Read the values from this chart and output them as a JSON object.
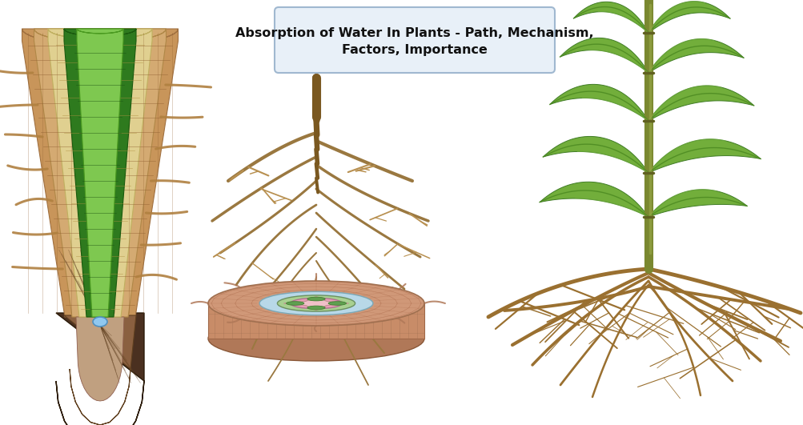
{
  "title_line1": "Absorption of Water In Plants - Path, Mechanism,",
  "title_line2": "Factors, Importance",
  "title_box_color": "#e8f0f8",
  "title_box_edge": "#a0b8d0",
  "title_fontsize": 11.5,
  "bg_color": "#ffffff",
  "fig_width": 10.04,
  "fig_height": 5.31,
  "colors": {
    "cortex_brown": "#c8955a",
    "cortex_light": "#d4aa72",
    "endodermis_yellow": "#e8d88a",
    "vascular_dark_green": "#2e7a1e",
    "vascular_light_green": "#7ec850",
    "root_cap_dark": "#6e5030",
    "root_cap_mid": "#b08050",
    "root_cap_light": "#c8a878",
    "tip_blue": "#90c0e8",
    "hair_brown": "#b08040",
    "taproot_brown": "#9a7840",
    "taproot_light": "#c09a60",
    "cross_outer": "#d4a080",
    "cross_mid": "#c09070",
    "vascular_blue": "#a0c8e0",
    "vascular_green_cross": "#60a050",
    "vascular_pink": "#e8a0b0",
    "vascular_pink_center": "#f0c0c8",
    "plant_stem": "#7a8830",
    "plant_stem_light": "#9aaa40",
    "leaf_green": "#6aaa30",
    "leaf_dark": "#3a7820",
    "leaf_light": "#90cc50",
    "root_corn_brown": "#a07838",
    "root_corn_light": "#c09850"
  }
}
